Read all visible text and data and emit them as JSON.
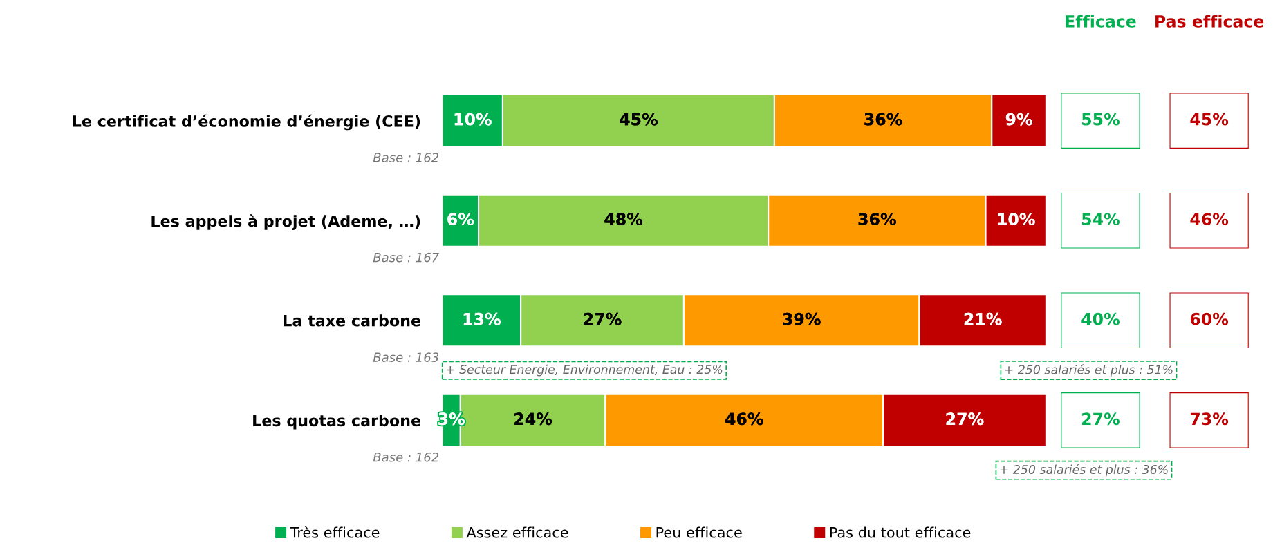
{
  "chart_data": {
    "type": "bar",
    "orientation": "horizontal",
    "stacked": true,
    "legend": "bottom",
    "categories": [
      "Le certificat d’économie d’énergie (CEE)",
      "Les appels à projet (Ademe, …)",
      "La taxe carbone",
      "Les quotas carbone"
    ],
    "series": [
      {
        "name": "Très efficace",
        "color": "#00b050",
        "values": [
          10,
          6,
          13,
          3
        ],
        "value_labels": [
          "10%",
          "6%",
          "13%",
          "3%"
        ]
      },
      {
        "name": "Assez efficace",
        "color": "#92d050",
        "values": [
          45,
          48,
          27,
          24
        ],
        "value_labels": [
          "45%",
          "48%",
          "27%",
          "24%"
        ]
      },
      {
        "name": "Peu efficace",
        "color": "#ff9900",
        "values": [
          36,
          36,
          39,
          46
        ],
        "value_labels": [
          "36%",
          "36%",
          "39%",
          "46%"
        ]
      },
      {
        "name": "Pas du tout efficace",
        "color": "#c00000",
        "values": [
          9,
          10,
          21,
          27
        ],
        "value_labels": [
          "9%",
          "10%",
          "21%",
          "27%"
        ]
      }
    ],
    "annotations": [
      "Efficace",
      "Pas efficace",
      "55%",
      "45%",
      "54%",
      "46%",
      "40%",
      "60%",
      "27%",
      "73%",
      "Base : 162",
      "Base : 167",
      "Base : 163",
      "Base : 162",
      "+ Secteur Energie, Environnement, Eau : 25%",
      "+ 250 salariés et plus : 51%",
      "+ 250 salariés et plus : 36%"
    ]
  }
}
